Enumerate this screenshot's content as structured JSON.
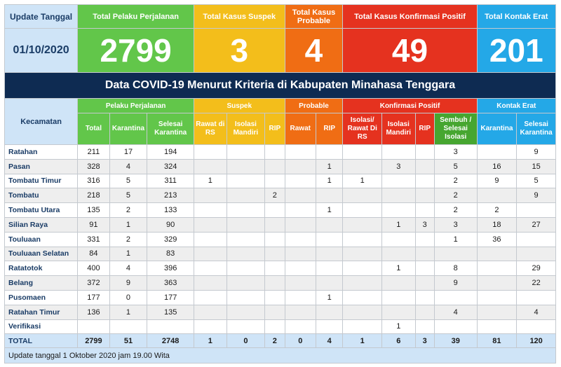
{
  "update_label": "Update Tanggal",
  "update_date": "01/10/2020",
  "kpis": [
    {
      "label": "Total Pelaku Perjalanan",
      "value": "2799"
    },
    {
      "label": "Total Kasus Suspek",
      "value": "3"
    },
    {
      "label": "Total Kasus Probable",
      "value": "4"
    },
    {
      "label": "Total Kasus Konfirmasi Positif",
      "value": "49"
    },
    {
      "label": "Total Kontak Erat",
      "value": "201"
    }
  ],
  "colors": {
    "green": "#62c64a",
    "yellow": "#f3be1b",
    "orange": "#f06d14",
    "red": "#e5321f",
    "cyan": "#24a8e7",
    "navy": "#0e2b52"
  },
  "title": "Data COVID-19 Menurut Kriteria di Kabupaten Minahasa Tenggara",
  "kecamatan_header": "Kecamatan",
  "groups": [
    "Pelaku Perjalanan",
    "Suspek",
    "Probable",
    "Konfirmasi Positif",
    "Kontak Erat"
  ],
  "subheaders": [
    "Total",
    "Karantina",
    "Selesai Karantina",
    "Rawat di RS",
    "Isolasi Mandiri",
    "RIP",
    "Rawat",
    "RIP",
    "Isolasi/ Rawat Di RS",
    "Isolasi Mandiri",
    "RIP",
    "Sembuh / Selesai Isolasi",
    "Karantina",
    "Selesai Karantina"
  ],
  "rows": [
    {
      "name": "Ratahan",
      "cells": [
        "211",
        "17",
        "194",
        "",
        "",
        "",
        "",
        "",
        "",
        "",
        "",
        "3",
        "",
        "9"
      ]
    },
    {
      "name": "Pasan",
      "cells": [
        "328",
        "4",
        "324",
        "",
        "",
        "",
        "",
        "1",
        "",
        "3",
        "",
        "5",
        "16",
        "15"
      ]
    },
    {
      "name": "Tombatu Timur",
      "cells": [
        "316",
        "5",
        "311",
        "1",
        "",
        "",
        "",
        "1",
        "1",
        "",
        "",
        "2",
        "9",
        "5"
      ]
    },
    {
      "name": "Tombatu",
      "cells": [
        "218",
        "5",
        "213",
        "",
        "",
        "2",
        "",
        "",
        "",
        "",
        "",
        "2",
        "",
        "9"
      ]
    },
    {
      "name": "Tombatu Utara",
      "cells": [
        "135",
        "2",
        "133",
        "",
        "",
        "",
        "",
        "1",
        "",
        "",
        "",
        "2",
        "2",
        ""
      ]
    },
    {
      "name": "Silian Raya",
      "cells": [
        "91",
        "1",
        "90",
        "",
        "",
        "",
        "",
        "",
        "",
        "1",
        "3",
        "3",
        "18",
        "27"
      ]
    },
    {
      "name": "Touluaan",
      "cells": [
        "331",
        "2",
        "329",
        "",
        "",
        "",
        "",
        "",
        "",
        "",
        "",
        "1",
        "36",
        ""
      ]
    },
    {
      "name": "Touluaan Selatan",
      "cells": [
        "84",
        "1",
        "83",
        "",
        "",
        "",
        "",
        "",
        "",
        "",
        "",
        "",
        "",
        ""
      ]
    },
    {
      "name": "Ratatotok",
      "cells": [
        "400",
        "4",
        "396",
        "",
        "",
        "",
        "",
        "",
        "",
        "1",
        "",
        "8",
        "",
        "29"
      ]
    },
    {
      "name": "Belang",
      "cells": [
        "372",
        "9",
        "363",
        "",
        "",
        "",
        "",
        "",
        "",
        "",
        "",
        "9",
        "",
        "22"
      ]
    },
    {
      "name": "Pusomaen",
      "cells": [
        "177",
        "0",
        "177",
        "",
        "",
        "",
        "",
        "1",
        "",
        "",
        "",
        "",
        "",
        ""
      ]
    },
    {
      "name": "Ratahan Timur",
      "cells": [
        "136",
        "1",
        "135",
        "",
        "",
        "",
        "",
        "",
        "",
        "",
        "",
        "4",
        "",
        "4"
      ]
    },
    {
      "name": "Verifikasi",
      "cells": [
        "",
        "",
        "",
        "",
        "",
        "",
        "",
        "",
        "",
        "1",
        "",
        "",
        "",
        ""
      ]
    }
  ],
  "total": {
    "name": "TOTAL",
    "cells": [
      "2799",
      "51",
      "2748",
      "1",
      "0",
      "2",
      "0",
      "4",
      "1",
      "6",
      "3",
      "39",
      "81",
      "120"
    ]
  },
  "footer": "Update tanggal 1 Oktober 2020 jam 19.00 Wita"
}
